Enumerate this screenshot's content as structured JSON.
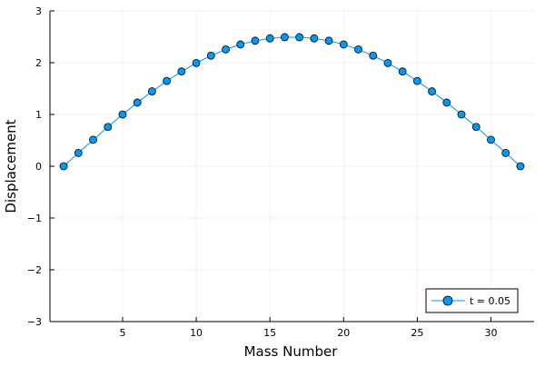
{
  "chart_data": {
    "type": "line",
    "title": "",
    "xlabel": "Mass Number",
    "ylabel": "Displacement",
    "xlim": [
      0.07,
      32.93
    ],
    "ylim": [
      -3,
      3
    ],
    "xticks": [
      5,
      10,
      15,
      20,
      25,
      30
    ],
    "yticks": [
      -3,
      -2,
      -1,
      0,
      1,
      2,
      3
    ],
    "ytick_labels": [
      "−3",
      "−2",
      "−1",
      "0",
      "1",
      "2",
      "3"
    ],
    "grid": true,
    "legend_position": "bottom-right",
    "series": [
      {
        "name": "t = 0.05",
        "color": "#009af9",
        "marker": "circle",
        "x": [
          1,
          2,
          3,
          4,
          5,
          6,
          7,
          8,
          9,
          10,
          11,
          12,
          13,
          14,
          15,
          16,
          17,
          18,
          19,
          20,
          21,
          22,
          23,
          24,
          25,
          26,
          27,
          28,
          29,
          30,
          31,
          32
        ],
        "y": [
          0,
          0.257,
          0.511,
          0.759,
          1.0,
          1.229,
          1.446,
          1.647,
          1.83,
          1.994,
          2.136,
          2.256,
          2.352,
          2.424,
          2.47,
          2.492,
          2.492,
          2.47,
          2.424,
          2.352,
          2.256,
          2.136,
          1.994,
          1.83,
          1.647,
          1.446,
          1.229,
          1.0,
          0.759,
          0.511,
          0.257,
          0
        ]
      }
    ]
  }
}
